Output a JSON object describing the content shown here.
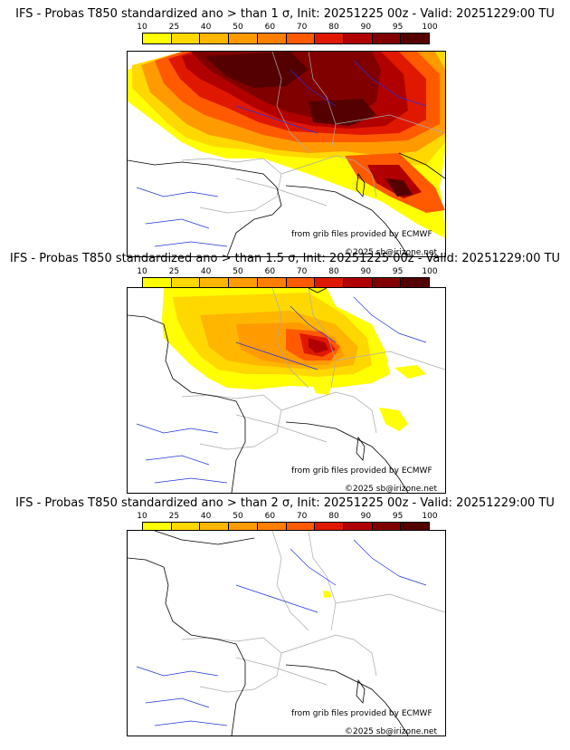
{
  "colorbar": {
    "ticks": [
      "10",
      "25",
      "40",
      "50",
      "60",
      "70",
      "80",
      "90",
      "95",
      "100"
    ],
    "colors": [
      "#ffff00",
      "#ffd800",
      "#ffb600",
      "#ff9a00",
      "#ff7e00",
      "#ff5a00",
      "#e01800",
      "#b00000",
      "#800000",
      "#550000"
    ]
  },
  "panels": [
    {
      "title": "IFS - Probas T850  standardized ano > than 1 σ, Init: 20251225 00z - Valid: 20251229:00 TU",
      "credit_source": "from grib files provided by ECMWF",
      "credit_copyright": "©2025 sb@irizone.net"
    },
    {
      "title": "IFS - Probas T850  standardized ano > than 1.5 σ, Init: 20251225 00z - Valid: 20251229:00 TU",
      "credit_source": "from grib files provided by ECMWF",
      "credit_copyright": "©2025 sb@irizone.net"
    },
    {
      "title": "IFS - Probas T850  standardized ano > than 2 σ, Init: 20251225 00z - Valid: 20251229:00 TU",
      "credit_source": "from grib files provided by ECMWF",
      "credit_copyright": "©2025 sb@irizone.net"
    }
  ],
  "colors": {
    "coast": "#000000",
    "borders": "#aaaaaa",
    "rivers": "#2233dd"
  }
}
